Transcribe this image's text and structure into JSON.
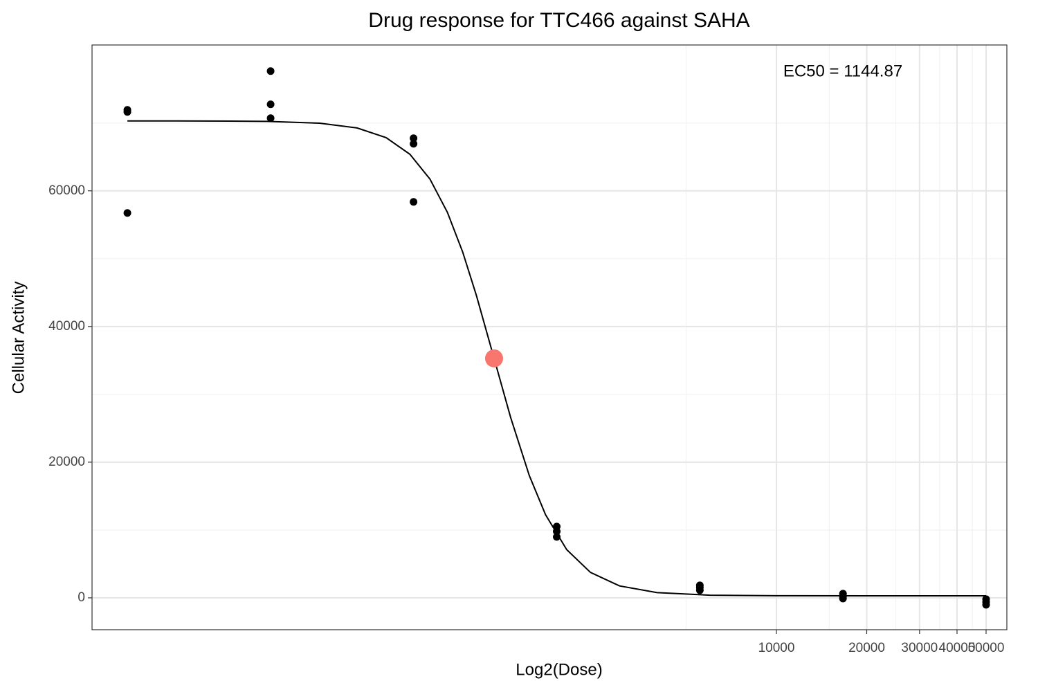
{
  "chart_data": {
    "type": "scatter",
    "title": "Drug response for TTC466 against SAHA",
    "x_label": "Log2(Dose)",
    "y_label": "Cellular Activity",
    "annotation": "EC50 = 1144.87",
    "x_scale": "log2",
    "xlim": [
      52.3,
      58640
    ],
    "xticks": [
      10000,
      20000,
      30000,
      40000,
      50000
    ],
    "xminor": [
      5000,
      15000,
      25000,
      35000,
      45000
    ],
    "ylim": [
      -4700,
      81500
    ],
    "yticks": [
      0,
      20000,
      40000,
      60000
    ],
    "yminor": [
      10000,
      30000,
      50000,
      70000
    ],
    "grid": true,
    "points": {
      "color": "#000000",
      "x": [
        68.6,
        68.6,
        68.6,
        206,
        206,
        206,
        617,
        617,
        617,
        1852,
        1852,
        1852,
        5556,
        5556,
        5556,
        16667,
        16667,
        16667,
        50000,
        50000,
        50000
      ],
      "y": [
        71939,
        71633,
        56735,
        77653,
        72755,
        70714,
        67755,
        66939,
        58367,
        10510,
        9796,
        8980,
        1837,
        1531,
        1122,
        612,
        204,
        -102,
        -204,
        -612,
        -1020
      ]
    },
    "curve": {
      "color": "#000000",
      "x": [
        68.6,
        100,
        150,
        200,
        300,
        400,
        500,
        600,
        700,
        800,
        900,
        1000,
        1145,
        1300,
        1500,
        1700,
        2000,
        2400,
        3000,
        4000,
        6000,
        10000,
        20000,
        50000
      ],
      "y": [
        70300,
        70300,
        70279,
        70235,
        69972,
        69273,
        67844,
        65391,
        61719,
        56830,
        50962,
        44550,
        35300,
        26598,
        18044,
        12247,
        7090,
        3748,
        1754,
        767,
        393,
        312,
        301,
        300
      ]
    },
    "ec50_point": {
      "color": "#f8766d",
      "x": 1144.87,
      "y": 35300
    }
  }
}
